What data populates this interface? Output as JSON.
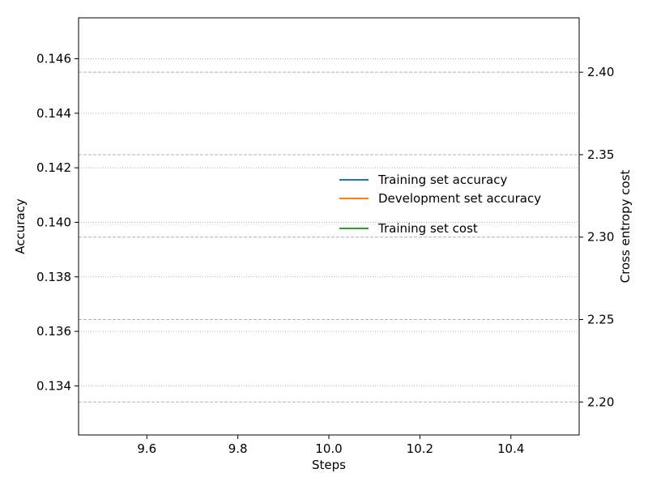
{
  "chart_data": {
    "type": "line",
    "title": "",
    "xlabel": "Steps",
    "ylabel": "Accuracy",
    "y2label": "Cross entropy cost",
    "xlim": [
      9.45,
      10.55
    ],
    "ylim": [
      0.1322,
      0.1475
    ],
    "y2lim": [
      2.18,
      2.433
    ],
    "xticks": [
      9.6,
      9.8,
      10.0,
      10.2,
      10.4
    ],
    "xtick_labels": [
      "9.6",
      "9.8",
      "10.0",
      "10.2",
      "10.4"
    ],
    "yticks": [
      0.134,
      0.136,
      0.138,
      0.14,
      0.142,
      0.144,
      0.146
    ],
    "ytick_labels": [
      "0.134",
      "0.136",
      "0.138",
      "0.140",
      "0.142",
      "0.144",
      "0.146"
    ],
    "y2ticks": [
      2.2,
      2.25,
      2.3,
      2.35,
      2.4
    ],
    "y2tick_labels": [
      "2.20",
      "2.25",
      "2.30",
      "2.35",
      "2.40"
    ],
    "grid": {
      "primary": "dotted",
      "secondary": "dashed"
    },
    "legend_placement": "center-right",
    "series": [
      {
        "name": "Training set accuracy",
        "axis": "left",
        "color": "#1f77b4",
        "x": [],
        "y": []
      },
      {
        "name": "Development set accuracy",
        "axis": "left",
        "color": "#ff7f0e",
        "x": [],
        "y": []
      },
      {
        "name": "Training set cost",
        "axis": "right",
        "color": "#2ca02c",
        "x": [],
        "y": []
      }
    ]
  }
}
